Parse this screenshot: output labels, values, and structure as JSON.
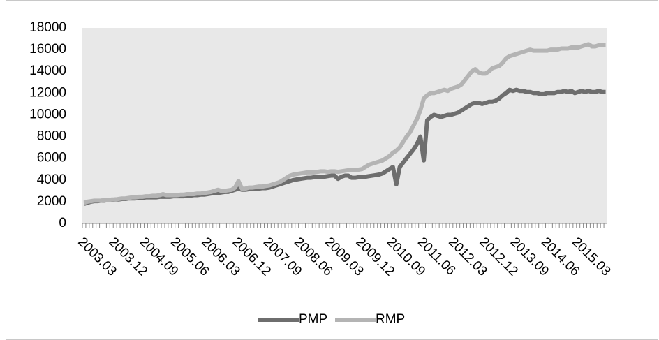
{
  "chart_data": {
    "type": "line",
    "categories": [
      "2003.03",
      null,
      null,
      null,
      null,
      null,
      null,
      null,
      null,
      "2003.12",
      null,
      null,
      null,
      null,
      null,
      null,
      null,
      null,
      "2004.09",
      null,
      null,
      null,
      null,
      null,
      null,
      null,
      null,
      "2005.06",
      null,
      null,
      null,
      null,
      null,
      null,
      null,
      null,
      "2006.03",
      null,
      null,
      null,
      null,
      null,
      null,
      null,
      null,
      "2006.12",
      null,
      null,
      null,
      null,
      null,
      null,
      null,
      null,
      "2007.09",
      null,
      null,
      null,
      null,
      null,
      null,
      null,
      null,
      "2008.06",
      null,
      null,
      null,
      null,
      null,
      null,
      null,
      null,
      "2009.03",
      null,
      null,
      null,
      null,
      null,
      null,
      null,
      null,
      "2009.12",
      null,
      null,
      null,
      null,
      null,
      null,
      null,
      null,
      "2010.09",
      null,
      null,
      null,
      null,
      null,
      null,
      null,
      null,
      "2011.06",
      null,
      null,
      null,
      null,
      null,
      null,
      null,
      null,
      "2012.03",
      null,
      null,
      null,
      null,
      null,
      null,
      null,
      null,
      "2012.12",
      null,
      null,
      null,
      null,
      null,
      null,
      null,
      null,
      "2013.09",
      null,
      null,
      null,
      null,
      null,
      null,
      null,
      null,
      "2014.06",
      null,
      null,
      null,
      null,
      null,
      null,
      null,
      null,
      "2015.03",
      null,
      null,
      null,
      null,
      null,
      null,
      null,
      null
    ],
    "series": [
      {
        "name": "PMP",
        "color": "#6e6e6e",
        "values": [
          1800,
          1900,
          2000,
          2050,
          2050,
          2100,
          2100,
          2150,
          2150,
          2200,
          2200,
          2250,
          2250,
          2300,
          2300,
          2300,
          2350,
          2350,
          2400,
          2400,
          2400,
          2400,
          2450,
          2450,
          2450,
          2450,
          2500,
          2500,
          2500,
          2500,
          2550,
          2550,
          2600,
          2600,
          2650,
          2650,
          2700,
          2750,
          2800,
          2800,
          2850,
          2900,
          2900,
          3000,
          3100,
          3200,
          3100,
          3100,
          3150,
          3150,
          3200,
          3200,
          3250,
          3250,
          3300,
          3400,
          3500,
          3600,
          3700,
          3800,
          3900,
          4000,
          4050,
          4100,
          4150,
          4200,
          4200,
          4250,
          4250,
          4300,
          4300,
          4350,
          4400,
          4400,
          4100,
          4300,
          4400,
          4400,
          4200,
          4200,
          4250,
          4300,
          4300,
          4350,
          4400,
          4450,
          4500,
          4600,
          4800,
          5000,
          5200,
          3600,
          5200,
          5600,
          6000,
          6400,
          6800,
          7300,
          8000,
          5800,
          9500,
          9800,
          10000,
          9900,
          9800,
          9900,
          10000,
          10000,
          10100,
          10200,
          10400,
          10600,
          10800,
          11000,
          11100,
          11100,
          11000,
          11100,
          11200,
          11200,
          11300,
          11500,
          11800,
          12000,
          12300,
          12200,
          12300,
          12200,
          12200,
          12100,
          12100,
          12000,
          12000,
          11900,
          11900,
          12000,
          12000,
          12000,
          12100,
          12100,
          12200,
          12100,
          12200,
          12000,
          12100,
          12200,
          12100,
          12200,
          12100,
          12100,
          12200,
          12100,
          12100
        ]
      },
      {
        "name": "RMP",
        "color": "#b4b4b4",
        "values": [
          1900,
          2000,
          2050,
          2100,
          2100,
          2100,
          2150,
          2150,
          2200,
          2200,
          2250,
          2300,
          2300,
          2350,
          2400,
          2400,
          2450,
          2450,
          2500,
          2500,
          2550,
          2550,
          2600,
          2700,
          2600,
          2600,
          2600,
          2600,
          2650,
          2650,
          2700,
          2700,
          2700,
          2750,
          2750,
          2800,
          2850,
          2900,
          3000,
          3100,
          3000,
          3000,
          3050,
          3100,
          3300,
          3900,
          3200,
          3200,
          3300,
          3300,
          3350,
          3400,
          3400,
          3450,
          3500,
          3600,
          3700,
          3800,
          4000,
          4200,
          4400,
          4500,
          4550,
          4600,
          4650,
          4700,
          4700,
          4700,
          4750,
          4800,
          4800,
          4750,
          4800,
          4800,
          4750,
          4800,
          4850,
          4900,
          4900,
          4900,
          4950,
          5000,
          5200,
          5400,
          5500,
          5600,
          5700,
          5800,
          6000,
          6200,
          6500,
          6700,
          7000,
          7500,
          8000,
          8400,
          9000,
          9600,
          10400,
          11500,
          11800,
          12000,
          12000,
          12100,
          12200,
          12300,
          12200,
          12400,
          12500,
          12600,
          12800,
          13200,
          13600,
          14000,
          14200,
          13900,
          13800,
          13800,
          14000,
          14300,
          14400,
          14500,
          14800,
          15200,
          15400,
          15500,
          15600,
          15700,
          15800,
          15900,
          16000,
          15900,
          15900,
          15900,
          15900,
          15900,
          16000,
          16000,
          16000,
          16100,
          16100,
          16100,
          16200,
          16200,
          16200,
          16300,
          16400,
          16500,
          16300,
          16300,
          16400,
          16400,
          16400
        ]
      }
    ],
    "ylim": [
      0,
      18000
    ],
    "yticks": [
      0,
      2000,
      4000,
      6000,
      8000,
      10000,
      12000,
      14000,
      16000,
      18000
    ],
    "grid": false,
    "legend": "bottom"
  }
}
